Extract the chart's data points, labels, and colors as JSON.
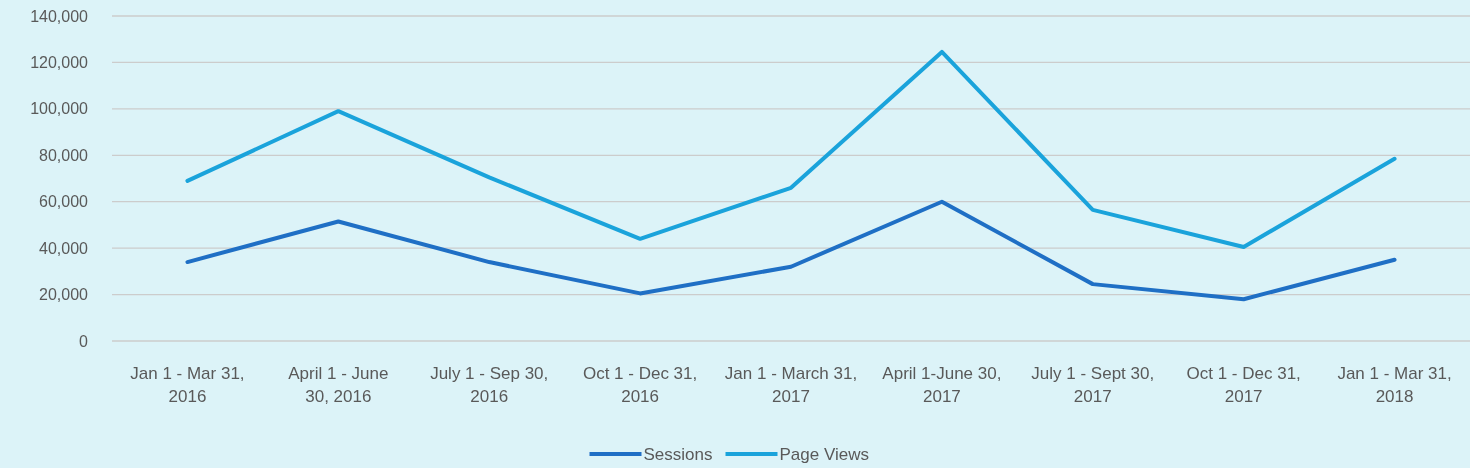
{
  "chart_data": {
    "type": "line",
    "categories": [
      "Jan 1 - Mar 31, 2016",
      "April 1 - June 30, 2016",
      "July 1 - Sep 30, 2016",
      "Oct 1 - Dec 31, 2016",
      "Jan 1 - March 31, 2017",
      "April 1-June 30, 2017",
      "July 1 - Sept 30, 2017",
      "Oct 1 - Dec 31, 2017",
      "Jan 1 - Mar 31, 2018"
    ],
    "series": [
      {
        "name": "Sessions",
        "color": "#1f6fc5",
        "values": [
          34000,
          51500,
          34000,
          20500,
          32000,
          60000,
          24500,
          18000,
          35000
        ]
      },
      {
        "name": "Page Views",
        "color": "#1aa3db",
        "values": [
          69000,
          99000,
          70500,
          44000,
          66000,
          124500,
          56500,
          40500,
          78500
        ]
      }
    ],
    "ylim": [
      0,
      140000
    ],
    "yticks": [
      {
        "value": 0,
        "label": "0"
      },
      {
        "value": 20000,
        "label": "20,000"
      },
      {
        "value": 40000,
        "label": "40,000"
      },
      {
        "value": 60000,
        "label": "60,000"
      },
      {
        "value": 80000,
        "label": "80,000"
      },
      {
        "value": 100000,
        "label": "100,000"
      },
      {
        "value": 120000,
        "label": "120,000"
      },
      {
        "value": 140000,
        "label": "140,000"
      }
    ],
    "grid": "y",
    "legend": "bottom",
    "marker": "none",
    "line_style": "solid"
  }
}
